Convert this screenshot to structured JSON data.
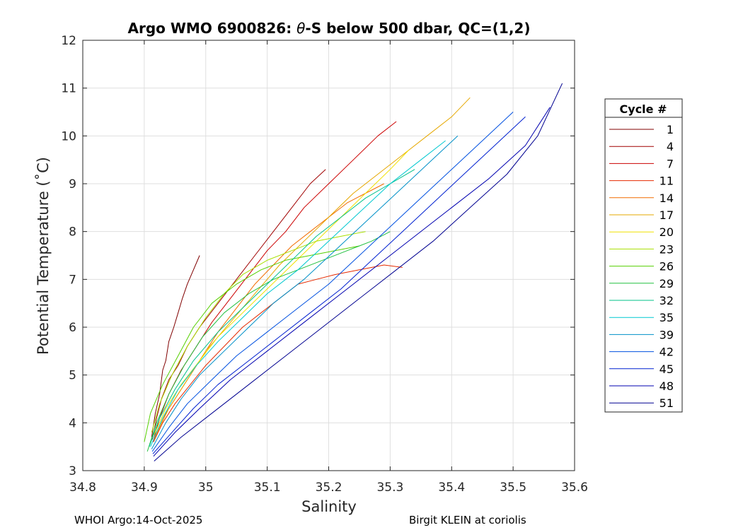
{
  "chart_data": {
    "type": "line",
    "title_prefix": "Argo WMO 6900826: ",
    "title_theta": "θ",
    "title_suffix": "-S below 500 dbar,  QC=(1,2)",
    "xlabel": "Salinity",
    "ylabel": "Potential Temperature (˚C)",
    "xlim": [
      34.8,
      35.6
    ],
    "ylim": [
      3,
      12
    ],
    "xticks": [
      34.8,
      34.9,
      35,
      35.1,
      35.2,
      35.3,
      35.4,
      35.5,
      35.6
    ],
    "xtick_labels": [
      "34.8",
      "34.9",
      "35",
      "35.1",
      "35.2",
      "35.3",
      "35.4",
      "35.5",
      "35.6"
    ],
    "yticks": [
      3,
      4,
      5,
      6,
      7,
      8,
      9,
      10,
      11,
      12
    ],
    "ytick_labels": [
      "3",
      "4",
      "5",
      "6",
      "7",
      "8",
      "9",
      "10",
      "11",
      "12"
    ],
    "grid": true,
    "legend": {
      "title": "Cycle #",
      "placement": "right",
      "entries": [
        "1",
        "4",
        "7",
        "11",
        "14",
        "17",
        "20",
        "23",
        "26",
        "29",
        "32",
        "35",
        "39",
        "42",
        "45",
        "48",
        "51"
      ]
    },
    "series": [
      {
        "name": "1",
        "color": "#800000",
        "x": [
          34.912,
          34.918,
          34.925,
          34.93,
          34.935,
          34.94,
          34.948,
          34.955,
          34.962,
          34.97,
          34.98,
          34.99
        ],
        "y": [
          3.7,
          4.2,
          4.6,
          5.1,
          5.3,
          5.7,
          6.0,
          6.3,
          6.6,
          6.9,
          7.2,
          7.5
        ]
      },
      {
        "name": "4",
        "color": "#a00000",
        "x": [
          34.913,
          34.92,
          34.928,
          34.94,
          34.955,
          34.97,
          34.99,
          35.02,
          35.05,
          35.08,
          35.11,
          35.14,
          35.17,
          35.195
        ],
        "y": [
          3.65,
          4.1,
          4.5,
          4.9,
          5.2,
          5.6,
          6.0,
          6.5,
          7.0,
          7.5,
          8.0,
          8.5,
          9.0,
          9.3
        ]
      },
      {
        "name": "7",
        "color": "#cc0000",
        "x": [
          34.914,
          34.925,
          34.94,
          34.96,
          34.985,
          35.01,
          35.04,
          35.07,
          35.1,
          35.13,
          35.16,
          35.2,
          35.24,
          35.28,
          35.31
        ],
        "y": [
          3.6,
          4.1,
          4.6,
          5.1,
          5.6,
          6.1,
          6.6,
          7.1,
          7.6,
          8.0,
          8.5,
          9.0,
          9.5,
          10.0,
          10.3
        ]
      },
      {
        "name": "11",
        "color": "#e62a00",
        "x": [
          34.915,
          34.93,
          34.95,
          34.975,
          35.0,
          35.03,
          35.06,
          35.09,
          35.12,
          35.15,
          35.18,
          35.21,
          35.25,
          35.29,
          35.32
        ],
        "y": [
          3.6,
          4.0,
          4.4,
          4.8,
          5.2,
          5.6,
          6.0,
          6.3,
          6.6,
          6.9,
          7.0,
          7.1,
          7.2,
          7.3,
          7.25
        ]
      },
      {
        "name": "14",
        "color": "#f26c00",
        "x": [
          34.916,
          34.935,
          34.96,
          34.99,
          35.02,
          35.05,
          35.08,
          35.11,
          35.14,
          35.17,
          35.2,
          35.23,
          35.26,
          35.29
        ],
        "y": [
          3.65,
          4.2,
          4.7,
          5.3,
          5.9,
          6.4,
          6.9,
          7.3,
          7.7,
          8.0,
          8.3,
          8.6,
          8.8,
          9.0
        ]
      },
      {
        "name": "17",
        "color": "#e6a800",
        "x": [
          34.917,
          34.94,
          34.97,
          35.0,
          35.04,
          35.08,
          35.12,
          35.16,
          35.2,
          35.24,
          35.28,
          35.32,
          35.36,
          35.4,
          35.43
        ],
        "y": [
          3.7,
          4.3,
          4.9,
          5.5,
          6.1,
          6.7,
          7.3,
          7.8,
          8.3,
          8.8,
          9.2,
          9.6,
          10.0,
          10.4,
          10.8
        ]
      },
      {
        "name": "20",
        "color": "#f0e000",
        "x": [
          34.916,
          34.935,
          34.96,
          34.99,
          35.02,
          35.06,
          35.1,
          35.14,
          35.18,
          35.22,
          35.26,
          35.3,
          35.33
        ],
        "y": [
          3.75,
          4.3,
          4.8,
          5.3,
          5.8,
          6.3,
          6.8,
          7.3,
          7.8,
          8.3,
          8.8,
          9.3,
          9.7
        ]
      },
      {
        "name": "23",
        "color": "#a8e000",
        "x": [
          34.912,
          34.925,
          34.945,
          34.97,
          35.0,
          35.03,
          35.06,
          35.1,
          35.14,
          35.18,
          35.22,
          35.26
        ],
        "y": [
          3.8,
          4.4,
          5.0,
          5.6,
          6.2,
          6.7,
          7.1,
          7.4,
          7.6,
          7.8,
          7.9,
          8.0
        ]
      },
      {
        "name": "26",
        "color": "#55d000",
        "x": [
          34.9,
          34.91,
          34.93,
          34.955,
          34.98,
          35.01,
          35.05,
          35.09,
          35.13,
          35.17,
          35.21,
          35.25
        ],
        "y": [
          3.6,
          4.2,
          4.8,
          5.4,
          6.0,
          6.5,
          6.9,
          7.2,
          7.4,
          7.5,
          7.6,
          7.7
        ]
      },
      {
        "name": "29",
        "color": "#22c040",
        "x": [
          34.905,
          34.92,
          34.94,
          34.965,
          34.995,
          35.03,
          35.07,
          35.11,
          35.15,
          35.19,
          35.23,
          35.27,
          35.3
        ],
        "y": [
          3.4,
          4.0,
          4.6,
          5.2,
          5.8,
          6.3,
          6.7,
          7.0,
          7.2,
          7.4,
          7.6,
          7.8,
          8.0
        ]
      },
      {
        "name": "32",
        "color": "#00c08a",
        "x": [
          34.908,
          34.925,
          34.95,
          34.98,
          35.02,
          35.06,
          35.1,
          35.14,
          35.18,
          35.22,
          35.26,
          35.3,
          35.34
        ],
        "y": [
          3.5,
          4.1,
          4.7,
          5.3,
          5.9,
          6.4,
          6.9,
          7.4,
          7.9,
          8.3,
          8.7,
          9.0,
          9.3
        ]
      },
      {
        "name": "35",
        "color": "#00c8d0",
        "x": [
          34.91,
          34.93,
          34.955,
          34.985,
          35.02,
          35.06,
          35.1,
          35.15,
          35.2,
          35.25,
          35.3,
          35.35,
          35.39
        ],
        "y": [
          3.5,
          4.1,
          4.7,
          5.2,
          5.7,
          6.2,
          6.7,
          7.2,
          7.8,
          8.4,
          9.0,
          9.5,
          9.9
        ]
      },
      {
        "name": "39",
        "color": "#0090c8",
        "x": [
          34.912,
          34.935,
          34.96,
          34.99,
          35.03,
          35.07,
          35.11,
          35.16,
          35.21,
          35.26,
          35.31,
          35.36,
          35.41
        ],
        "y": [
          3.45,
          4.0,
          4.5,
          5.0,
          5.5,
          6.0,
          6.5,
          7.0,
          7.6,
          8.2,
          8.8,
          9.4,
          10.0
        ]
      },
      {
        "name": "42",
        "color": "#0050e0",
        "x": [
          34.913,
          34.94,
          34.97,
          35.01,
          35.05,
          35.1,
          35.15,
          35.2,
          35.25,
          35.3,
          35.35,
          35.4,
          35.45,
          35.5
        ],
        "y": [
          3.4,
          3.9,
          4.4,
          4.9,
          5.4,
          5.9,
          6.4,
          6.9,
          7.5,
          8.1,
          8.7,
          9.3,
          9.9,
          10.5
        ]
      },
      {
        "name": "45",
        "color": "#0020d0",
        "x": [
          34.914,
          34.945,
          34.98,
          35.02,
          35.07,
          35.12,
          35.17,
          35.22,
          35.27,
          35.32,
          35.37,
          35.42,
          35.47,
          35.52
        ],
        "y": [
          3.35,
          3.8,
          4.3,
          4.8,
          5.3,
          5.8,
          6.3,
          6.8,
          7.4,
          8.0,
          8.6,
          9.2,
          9.8,
          10.4
        ]
      },
      {
        "name": "48",
        "color": "#0000b0",
        "x": [
          34.915,
          34.95,
          34.99,
          35.04,
          35.1,
          35.16,
          35.22,
          35.28,
          35.34,
          35.4,
          35.46,
          35.52,
          35.56
        ],
        "y": [
          3.3,
          3.8,
          4.3,
          4.9,
          5.5,
          6.1,
          6.7,
          7.3,
          7.9,
          8.5,
          9.1,
          9.8,
          10.6
        ]
      },
      {
        "name": "51",
        "color": "#000090",
        "x": [
          34.916,
          34.96,
          35.01,
          35.07,
          35.13,
          35.19,
          35.25,
          35.31,
          35.37,
          35.43,
          35.49,
          35.54,
          35.58
        ],
        "y": [
          3.2,
          3.7,
          4.2,
          4.8,
          5.4,
          6.0,
          6.6,
          7.2,
          7.8,
          8.5,
          9.2,
          10.0,
          11.1
        ]
      }
    ]
  },
  "footer": {
    "left": "WHOI Argo:14-Oct-2025",
    "right": "Birgit KLEIN at coriolis"
  }
}
